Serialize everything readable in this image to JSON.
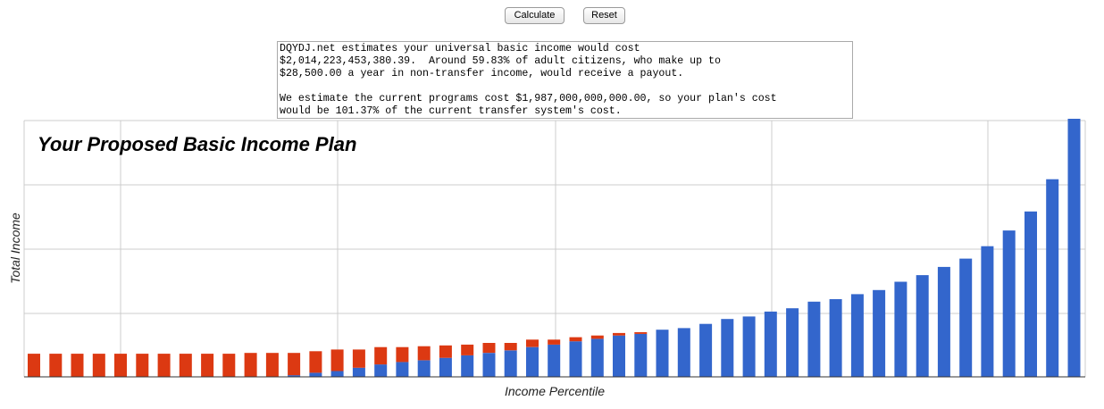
{
  "controls": {
    "calculate_label": "Calculate",
    "reset_label": "Reset"
  },
  "result": {
    "text": "DQYDJ.net estimates your universal basic income would cost\n$2,014,223,453,380.39.  Around 59.83% of adult citizens, who make up to\n$28,500.00 a year in non-transfer income, would receive a payout.\n\nWe estimate the current programs cost $1,987,000,000,000.00, so your plan's cost\nwould be 101.37% of the current transfer system's cost."
  },
  "chart_data": {
    "type": "bar",
    "stacked": true,
    "title": "Your Proposed Basic Income Plan",
    "xlabel": "Income Percentile",
    "ylabel": "Total Income",
    "ylim": [
      0,
      3.1
    ],
    "grid": true,
    "legend": "none",
    "colors": {
      "income": "#3366cc",
      "payout": "#dc3912"
    },
    "series": [
      {
        "key": "income",
        "values": [
          0,
          0,
          0,
          0,
          0,
          0,
          0,
          0,
          0,
          0,
          0,
          0,
          0.02,
          0.05,
          0.07,
          0.11,
          0.15,
          0.18,
          0.2,
          0.23,
          0.26,
          0.29,
          0.32,
          0.36,
          0.39,
          0.43,
          0.46,
          0.5,
          0.52,
          0.57,
          0.59,
          0.64,
          0.7,
          0.73,
          0.79,
          0.83,
          0.91,
          0.94,
          1.0,
          1.05,
          1.15,
          1.23,
          1.33,
          1.43,
          1.58,
          1.77,
          2.0,
          2.39,
          3.13
        ]
      },
      {
        "key": "payout",
        "values": [
          0.28,
          0.28,
          0.28,
          0.28,
          0.28,
          0.28,
          0.28,
          0.28,
          0.28,
          0.28,
          0.29,
          0.29,
          0.27,
          0.26,
          0.26,
          0.22,
          0.21,
          0.18,
          0.17,
          0.15,
          0.13,
          0.12,
          0.09,
          0.09,
          0.06,
          0.05,
          0.04,
          0.03,
          0.02,
          0,
          0,
          0,
          0,
          0,
          0,
          0,
          0,
          0,
          0,
          0,
          0,
          0,
          0,
          0,
          0,
          0,
          0,
          0,
          0
        ]
      }
    ]
  }
}
